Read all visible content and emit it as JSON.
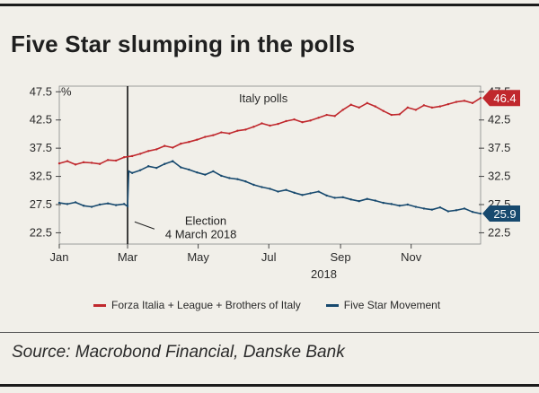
{
  "title": "Five Star slumping in the polls",
  "source": "Source: Macrobond Financial, Danske Bank",
  "chart_data": {
    "type": "line",
    "title": "Italy polls",
    "unit_label": "%",
    "ylim": [
      20.5,
      48.5
    ],
    "yticks": [
      "47.5",
      "42.5",
      "37.5",
      "32.5",
      "27.5",
      "22.5"
    ],
    "ytick_values": [
      47.5,
      42.5,
      37.5,
      32.5,
      27.5,
      22.5
    ],
    "xlim_days": [
      0,
      364
    ],
    "xticks": [
      {
        "label": "Jan",
        "day": 0
      },
      {
        "label": "Mar",
        "day": 59
      },
      {
        "label": "May",
        "day": 120
      },
      {
        "label": "Jul",
        "day": 181
      },
      {
        "label": "Sep",
        "day": 243
      },
      {
        "label": "Nov",
        "day": 304
      }
    ],
    "year_label": "2018",
    "annotation": {
      "line1": "Election",
      "line2": "4 March 2018",
      "day": 62,
      "value": 23.8
    },
    "series": [
      {
        "name": "Forza Italia + League + Brothers of Italy",
        "color": "#c0282d",
        "last_label": "46.4",
        "x": [
          0,
          7,
          14,
          21,
          28,
          35,
          42,
          49,
          56,
          63,
          70,
          77,
          84,
          91,
          98,
          105,
          112,
          119,
          126,
          133,
          140,
          147,
          154,
          161,
          168,
          175,
          182,
          189,
          196,
          203,
          210,
          217,
          224,
          231,
          238,
          245,
          252,
          259,
          266,
          273,
          280,
          287,
          294,
          301,
          308,
          315,
          322,
          329,
          336,
          343,
          350,
          357,
          364
        ],
        "values": [
          34.8,
          35.2,
          34.6,
          35.0,
          34.9,
          34.7,
          35.4,
          35.3,
          35.9,
          36.1,
          36.5,
          37.0,
          37.3,
          37.9,
          37.6,
          38.3,
          38.6,
          39.0,
          39.5,
          39.8,
          40.3,
          40.1,
          40.6,
          40.8,
          41.3,
          41.9,
          41.5,
          41.8,
          42.3,
          42.6,
          42.1,
          42.4,
          42.9,
          43.4,
          43.2,
          44.3,
          45.2,
          44.7,
          45.5,
          44.9,
          44.1,
          43.4,
          43.5,
          44.7,
          44.3,
          45.1,
          44.7,
          44.9,
          45.3,
          45.7,
          45.9,
          45.5,
          46.4
        ]
      },
      {
        "name": "Five Star Movement",
        "color": "#17496e",
        "last_label": "25.9",
        "x": [
          0,
          7,
          14,
          21,
          28,
          35,
          42,
          49,
          56,
          59,
          60,
          63,
          70,
          77,
          84,
          91,
          98,
          105,
          112,
          119,
          126,
          133,
          140,
          147,
          154,
          161,
          168,
          175,
          182,
          189,
          196,
          203,
          210,
          217,
          224,
          231,
          238,
          245,
          252,
          259,
          266,
          273,
          280,
          287,
          294,
          301,
          308,
          315,
          322,
          329,
          336,
          343,
          350,
          357,
          364
        ],
        "values": [
          27.8,
          27.6,
          27.9,
          27.3,
          27.1,
          27.5,
          27.7,
          27.4,
          27.6,
          27.2,
          33.4,
          33.1,
          33.6,
          34.3,
          34.0,
          34.7,
          35.2,
          34.1,
          33.7,
          33.2,
          32.8,
          33.4,
          32.6,
          32.2,
          32.0,
          31.6,
          31.0,
          30.6,
          30.3,
          29.8,
          30.1,
          29.6,
          29.2,
          29.5,
          29.8,
          29.1,
          28.7,
          28.8,
          28.4,
          28.1,
          28.5,
          28.2,
          27.8,
          27.6,
          27.3,
          27.5,
          27.1,
          26.8,
          26.6,
          27.0,
          26.3,
          26.5,
          26.8,
          26.2,
          25.9
        ]
      }
    ]
  }
}
